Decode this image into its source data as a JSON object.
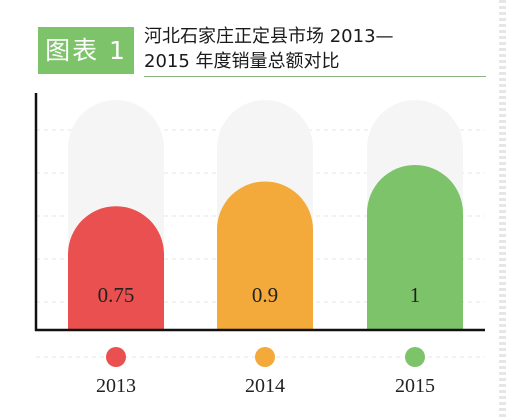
{
  "header": {
    "badge": "图表 1",
    "title_line1": "河北石家庄正定县市场 2013—",
    "title_line2": "2015 年度销量总额对比"
  },
  "chart_data": {
    "type": "bar",
    "categories": [
      "2013",
      "2014",
      "2015"
    ],
    "values": [
      0.75,
      0.9,
      1
    ],
    "value_labels": [
      "0.75",
      "0.9",
      "1"
    ],
    "title": "河北石家庄正定县市场 2013—2015 年度销量总额对比",
    "xlabel": "",
    "ylabel": "",
    "ylim": [
      0,
      1
    ],
    "grid": true,
    "legend": "none",
    "colors": [
      "#e9504f",
      "#f4aa3b",
      "#7dc36a"
    ],
    "track_color": "#f4f5f4"
  }
}
